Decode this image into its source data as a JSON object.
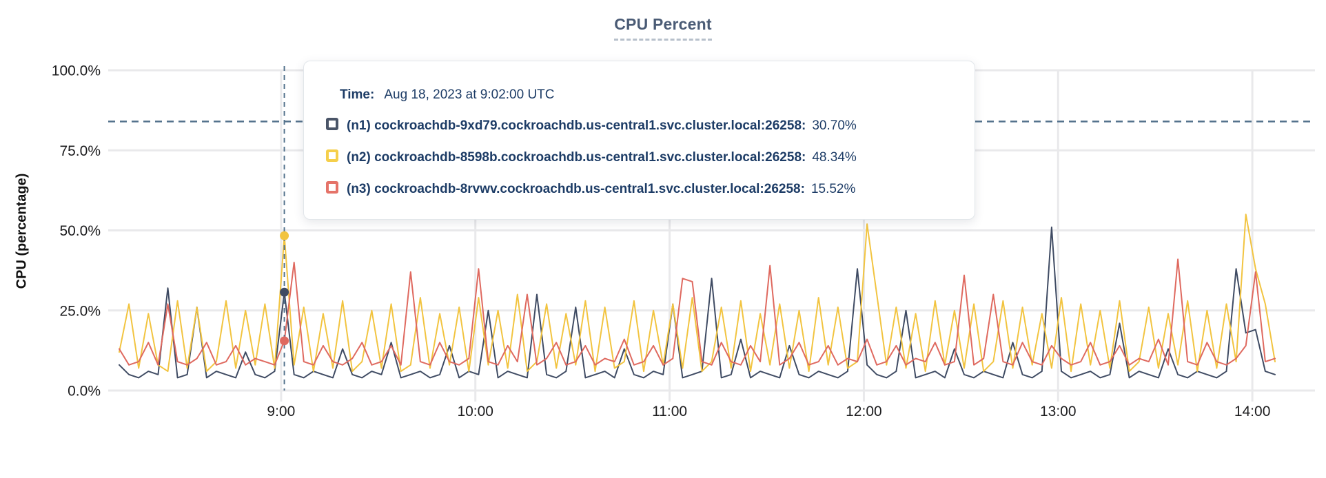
{
  "page": {
    "title": "CPU Percent"
  },
  "colors": {
    "title_text": "#4a5b75",
    "tooltip_text": "#1d3c66",
    "gridline": "#e9e9eb",
    "dashed_guides": "#53718c",
    "tick_text": "#1c1c1e",
    "series_n1": "#3f4b63",
    "series_n2": "#f2c440",
    "series_n3": "#df695f"
  },
  "tooltip": {
    "time_label": "Time:",
    "time_value": "Aug 18, 2023 at 9:02:00 UTC",
    "rows": [
      {
        "id": "n1",
        "swatch_color": "#4a5568",
        "label": "(n1) cockroachdb-9xd79.cockroachdb.us-central1.svc.cluster.local:26258:",
        "value": "30.70%"
      },
      {
        "id": "n2",
        "swatch_color": "#f5cf4b",
        "label": "(n2) cockroachdb-8598b.cockroachdb.us-central1.svc.cluster.local:26258:",
        "value": "48.34%"
      },
      {
        "id": "n3",
        "swatch_color": "#e57369",
        "label": "(n3) cockroachdb-8rvwv.cockroachdb.us-central1.svc.cluster.local:26258:",
        "value": "15.52%"
      }
    ]
  },
  "chart_data": {
    "type": "line",
    "title": "CPU Percent",
    "ylabel": "CPU (percentage)",
    "ylim": [
      0,
      100
    ],
    "grid": true,
    "y_ticks": [
      {
        "pct": 0,
        "label": "0.0%"
      },
      {
        "pct": 25,
        "label": "25.0%"
      },
      {
        "pct": 50,
        "label": "50.0%"
      },
      {
        "pct": 75,
        "label": "75.0%"
      },
      {
        "pct": 100,
        "label": "100.0%"
      }
    ],
    "x_ticks": [
      {
        "min": 540,
        "label": "9:00"
      },
      {
        "min": 600,
        "label": "10:00"
      },
      {
        "min": 660,
        "label": "11:00"
      },
      {
        "min": 720,
        "label": "12:00"
      },
      {
        "min": 780,
        "label": "13:00"
      },
      {
        "min": 840,
        "label": "14:00"
      }
    ],
    "x_start_min": 490,
    "x_step_min": 3,
    "x_end_min": 847,
    "reference_line": {
      "pct": 84,
      "style": "dashed"
    },
    "hover": {
      "time_min": 541,
      "time_text": "Aug 18, 2023 at 9:02:00 UTC",
      "points": [
        {
          "series": "n1",
          "pct": 30.7
        },
        {
          "series": "n2",
          "pct": 48.34
        },
        {
          "series": "n3",
          "pct": 15.52
        }
      ]
    },
    "series": [
      {
        "id": "n1",
        "name": "(n1) cockroachdb-9xd79.cockroachdb.us-central1.svc.cluster.local:26258",
        "color": "#3f4b63",
        "values": [
          8,
          5,
          4,
          6,
          5,
          32,
          4,
          5,
          26,
          4,
          6,
          5,
          4,
          12,
          5,
          4,
          6,
          30.7,
          5,
          4,
          6,
          5,
          4,
          13,
          5,
          4,
          6,
          5,
          15,
          4,
          5,
          6,
          4,
          5,
          14,
          4,
          6,
          5,
          25,
          4,
          6,
          5,
          4,
          30,
          5,
          4,
          6,
          26,
          4,
          5,
          6,
          4,
          13,
          5,
          4,
          6,
          5,
          27,
          4,
          5,
          6,
          35,
          4,
          5,
          16,
          4,
          6,
          5,
          4,
          14,
          5,
          4,
          6,
          5,
          4,
          6,
          38,
          8,
          5,
          4,
          6,
          25,
          4,
          5,
          6,
          4,
          13,
          5,
          4,
          6,
          5,
          4,
          15,
          5,
          4,
          6,
          51,
          6,
          4,
          5,
          6,
          4,
          5,
          21,
          4,
          6,
          5,
          4,
          13,
          5,
          4,
          6,
          5,
          4,
          6,
          38,
          18,
          19,
          6,
          5
        ]
      },
      {
        "id": "n2",
        "name": "(n2) cockroachdb-8598b.cockroachdb.us-central1.svc.cluster.local:26258",
        "color": "#f2c440",
        "values": [
          12,
          27,
          7,
          24,
          8,
          6,
          28,
          7,
          26,
          6,
          9,
          28,
          7,
          25,
          8,
          27,
          7,
          48.34,
          8,
          26,
          6,
          24,
          7,
          28,
          6,
          9,
          25,
          7,
          27,
          6,
          8,
          29,
          7,
          24,
          8,
          26,
          6,
          29,
          8,
          25,
          7,
          30,
          6,
          9,
          27,
          7,
          24,
          8,
          28,
          6,
          26,
          7,
          9,
          28,
          6,
          25,
          8,
          27,
          7,
          29,
          6,
          9,
          26,
          7,
          28,
          6,
          24,
          8,
          27,
          7,
          25,
          6,
          29,
          8,
          26,
          7,
          9,
          52,
          30,
          8,
          26,
          7,
          24,
          6,
          28,
          8,
          25,
          7,
          27,
          6,
          9,
          28,
          7,
          26,
          8,
          24,
          7,
          29,
          6,
          27,
          8,
          25,
          7,
          28,
          6,
          9,
          26,
          7,
          24,
          8,
          28,
          6,
          25,
          7,
          27,
          9,
          55,
          38,
          27,
          9
        ]
      },
      {
        "id": "n3",
        "name": "(n3) cockroachdb-8rvwv.cockroachdb.us-central1.svc.cluster.local:26258",
        "color": "#df695f",
        "values": [
          13,
          8,
          9,
          15,
          8,
          27,
          9,
          8,
          10,
          15,
          8,
          9,
          14,
          8,
          10,
          9,
          8,
          15.52,
          40,
          9,
          8,
          14,
          9,
          8,
          10,
          15,
          8,
          9,
          14,
          8,
          37,
          9,
          8,
          15,
          9,
          8,
          10,
          38,
          9,
          8,
          14,
          9,
          30,
          8,
          10,
          15,
          8,
          9,
          14,
          8,
          10,
          9,
          16,
          8,
          9,
          14,
          8,
          10,
          35,
          34,
          9,
          8,
          15,
          9,
          8,
          14,
          9,
          39,
          8,
          10,
          15,
          8,
          9,
          14,
          8,
          10,
          9,
          16,
          8,
          9,
          14,
          8,
          10,
          9,
          15,
          8,
          9,
          36,
          8,
          10,
          30,
          9,
          8,
          15,
          9,
          8,
          14,
          10,
          8,
          9,
          15,
          8,
          9,
          14,
          8,
          10,
          9,
          16,
          8,
          41,
          9,
          8,
          15,
          9,
          8,
          10,
          14,
          37,
          9,
          10
        ]
      }
    ]
  }
}
